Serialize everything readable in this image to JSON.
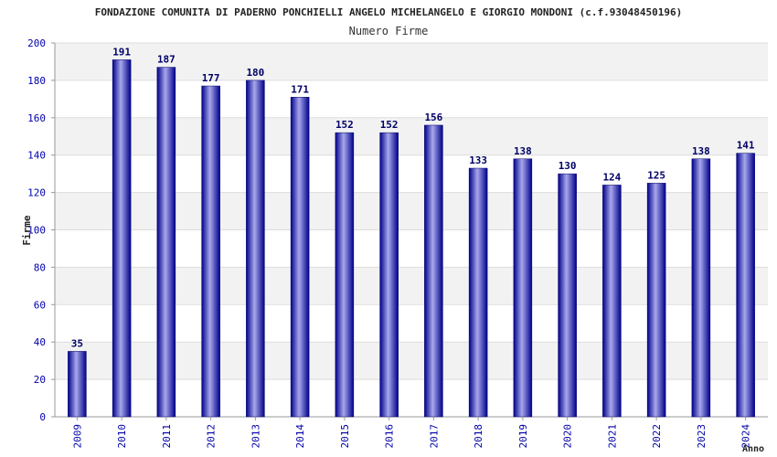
{
  "chart_data": {
    "type": "bar",
    "title": "FONDAZIONE COMUNITA DI PADERNO PONCHIELLI ANGELO MICHELANGELO E GIORGIO MONDONI (c.f.93048450196)",
    "subtitle": "Numero Firme",
    "xlabel": "Anno",
    "ylabel": "Firme",
    "categories": [
      "2009",
      "2010",
      "2011",
      "2012",
      "2013",
      "2014",
      "2015",
      "2016",
      "2017",
      "2018",
      "2019",
      "2020",
      "2021",
      "2022",
      "2023",
      "2024"
    ],
    "values": [
      35,
      191,
      187,
      177,
      180,
      171,
      152,
      152,
      156,
      133,
      138,
      130,
      124,
      125,
      138,
      141
    ],
    "ylim": [
      0,
      200
    ],
    "yticks": [
      0,
      20,
      40,
      60,
      80,
      100,
      120,
      140,
      160,
      180,
      200
    ],
    "grid": true,
    "data_labels": true,
    "colors": {
      "bar_dark": "#00008b",
      "bar_light": "#a0a0e8",
      "label": "#000066",
      "tick": "#0000aa",
      "band": "#f2f2f2"
    }
  }
}
